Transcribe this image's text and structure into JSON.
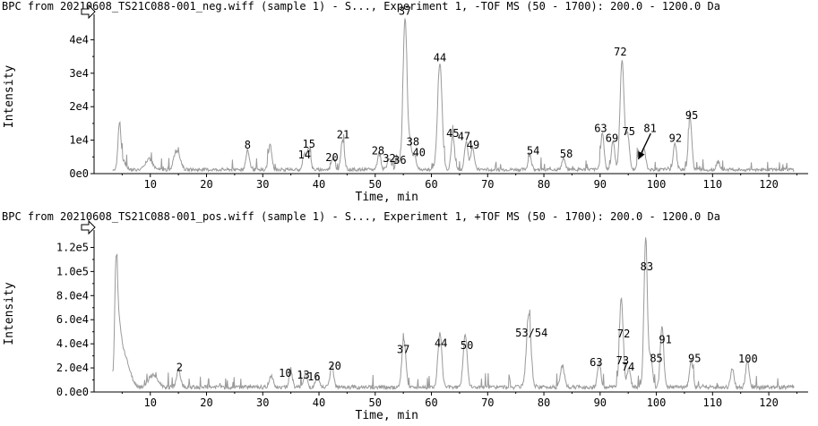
{
  "chart_data": [
    {
      "type": "line",
      "title": "BPC from 20210608_TS21C088-001_neg.wiff (sample 1) - S..., Experiment 1, -TOF MS (50 - 1700): 200.0 - 1200.0 Da",
      "xlabel": "Time, min",
      "ylabel": "Intensity",
      "xlim": [
        0,
        127
      ],
      "ylim": [
        0,
        46000
      ],
      "x_ticks": [
        10,
        20,
        30,
        40,
        50,
        60,
        70,
        80,
        90,
        100,
        110,
        120
      ],
      "y_ticks": [
        0,
        10000,
        20000,
        30000,
        40000
      ],
      "y_tick_labels": [
        "0e0",
        "1e4",
        "2e4",
        "3e4",
        "4e4"
      ],
      "baseline": 1200,
      "peaks": [
        {
          "x": 4.5,
          "y": 12500,
          "w": 0.25
        },
        {
          "x": 5.0,
          "y": 3000,
          "w": 0.5
        },
        {
          "x": 9.8,
          "y": 3200,
          "w": 0.6
        },
        {
          "x": 14.5,
          "y": 4500,
          "w": 0.4
        },
        {
          "x": 15.2,
          "y": 3000,
          "w": 0.4
        },
        {
          "x": 27.3,
          "y": 5500,
          "w": 0.3,
          "label": "8"
        },
        {
          "x": 31.3,
          "y": 7500,
          "w": 0.3
        },
        {
          "x": 37.4,
          "y": 4500,
          "w": 0.3,
          "label": "14"
        },
        {
          "x": 38.2,
          "y": 6500,
          "w": 0.3,
          "label": "15"
        },
        {
          "x": 42.5,
          "y": 3500,
          "w": 0.3,
          "label": "20"
        },
        {
          "x": 44.2,
          "y": 9000,
          "w": 0.3,
          "label": "21"
        },
        {
          "x": 50.7,
          "y": 4800,
          "w": 0.3,
          "label": "28"
        },
        {
          "x": 52.5,
          "y": 3500,
          "w": 0.3,
          "label": "32"
        },
        {
          "x": 54.0,
          "y": 2800,
          "w": 0.3,
          "label": "36"
        },
        {
          "x": 55.3,
          "y": 45500,
          "w": 0.35,
          "label": "37"
        },
        {
          "x": 56.2,
          "y": 7500,
          "w": 0.3,
          "label": "38"
        },
        {
          "x": 57.0,
          "y": 4500,
          "w": 0.3,
          "label": "40"
        },
        {
          "x": 61.5,
          "y": 32000,
          "w": 0.4,
          "label": "44"
        },
        {
          "x": 63.8,
          "y": 10000,
          "w": 0.3,
          "label": "45"
        },
        {
          "x": 66.2,
          "y": 8500,
          "w": 0.3,
          "label": "47"
        },
        {
          "x": 67.3,
          "y": 7000,
          "w": 0.3,
          "label": "49"
        },
        {
          "x": 77.5,
          "y": 4200,
          "w": 0.3,
          "label": "54"
        },
        {
          "x": 83.5,
          "y": 3200,
          "w": 0.3,
          "label": "58"
        },
        {
          "x": 90.4,
          "y": 11000,
          "w": 0.3,
          "label": "63"
        },
        {
          "x": 92.3,
          "y": 8500,
          "w": 0.3,
          "label": "69"
        },
        {
          "x": 93.9,
          "y": 33000,
          "w": 0.35,
          "label": "72"
        },
        {
          "x": 94.9,
          "y": 10500,
          "w": 0.3,
          "label": "75"
        },
        {
          "x": 96.9,
          "y": 5000,
          "w": 0.3,
          "label": "81"
        },
        {
          "x": 97.8,
          "y": 6000,
          "w": 0.3
        },
        {
          "x": 103.3,
          "y": 8000,
          "w": 0.3,
          "label": "92"
        },
        {
          "x": 106.0,
          "y": 15500,
          "w": 0.3,
          "label": "95"
        },
        {
          "x": 111.0,
          "y": 2500,
          "w": 0.3
        }
      ],
      "annotations": [
        {
          "text": "8",
          "x": 27.3,
          "y": 7500
        },
        {
          "text": "14",
          "x": 37.4,
          "y": 4500
        },
        {
          "text": "15",
          "x": 38.2,
          "y": 7700
        },
        {
          "text": "20",
          "x": 42.3,
          "y": 3800
        },
        {
          "text": "21",
          "x": 44.3,
          "y": 10500
        },
        {
          "text": "28",
          "x": 50.5,
          "y": 5800
        },
        {
          "text": "32",
          "x": 52.5,
          "y": 3500
        },
        {
          "text": "36",
          "x": 54.4,
          "y": 3000
        },
        {
          "text": "37",
          "x": 55.3,
          "y": 47500
        },
        {
          "text": "38",
          "x": 56.7,
          "y": 8400
        },
        {
          "text": "40",
          "x": 57.8,
          "y": 5200
        },
        {
          "text": "44",
          "x": 61.5,
          "y": 33500
        },
        {
          "text": "45",
          "x": 63.8,
          "y": 11000
        },
        {
          "text": "47",
          "x": 65.8,
          "y": 10000
        },
        {
          "text": "49",
          "x": 67.4,
          "y": 7500
        },
        {
          "text": "54",
          "x": 78.1,
          "y": 5800
        },
        {
          "text": "58",
          "x": 84.0,
          "y": 4800
        },
        {
          "text": "63",
          "x": 90.1,
          "y": 12500
        },
        {
          "text": "69",
          "x": 92.1,
          "y": 9500
        },
        {
          "text": "72",
          "x": 93.6,
          "y": 35300
        },
        {
          "text": "75",
          "x": 95.1,
          "y": 11500
        },
        {
          "text": "81",
          "x": 98.9,
          "y": 12500
        },
        {
          "text": "92",
          "x": 103.4,
          "y": 9500
        },
        {
          "text": "95",
          "x": 106.3,
          "y": 16300
        }
      ],
      "arrow": {
        "from": [
          99.0,
          12000
        ],
        "to": [
          96.8,
          4300
        ]
      }
    },
    {
      "type": "line",
      "title": "BPC from 20210608_TS21C088-001_pos.wiff (sample 1) - S..., Experiment 1, +TOF MS (50 - 1700): 200.0 - 1200.0 Da",
      "xlabel": "Time, min",
      "ylabel": "Intensity",
      "xlim": [
        0,
        127
      ],
      "ylim": [
        0,
        130000
      ],
      "x_ticks": [
        10,
        20,
        30,
        40,
        50,
        60,
        70,
        80,
        90,
        100,
        110,
        120
      ],
      "y_ticks": [
        0,
        20000,
        40000,
        60000,
        80000,
        100000,
        120000
      ],
      "y_tick_labels": [
        "0.0e0",
        "2.0e4",
        "4.0e4",
        "6.0e4",
        "8.0e4",
        "1.0e5",
        "1.2e5"
      ],
      "baseline": 4000,
      "peaks": [
        {
          "x": 3.9,
          "y": 88000,
          "w": 0.25
        },
        {
          "x": 4.4,
          "y": 42000,
          "w": 0.4
        },
        {
          "x": 5.2,
          "y": 20000,
          "w": 0.6
        },
        {
          "x": 6.0,
          "y": 12000,
          "w": 0.8
        },
        {
          "x": 10.5,
          "y": 10000,
          "w": 0.8
        },
        {
          "x": 15.0,
          "y": 15000,
          "w": 0.35,
          "label": "2"
        },
        {
          "x": 31.5,
          "y": 10000,
          "w": 0.35
        },
        {
          "x": 35.0,
          "y": 12000,
          "w": 0.3,
          "label": "10"
        },
        {
          "x": 37.6,
          "y": 11000,
          "w": 0.3,
          "label": "13"
        },
        {
          "x": 39.7,
          "y": 9500,
          "w": 0.3,
          "label": "16"
        },
        {
          "x": 42.3,
          "y": 18000,
          "w": 0.3,
          "label": "20"
        },
        {
          "x": 55.1,
          "y": 40000,
          "w": 0.35,
          "label": "37"
        },
        {
          "x": 61.5,
          "y": 45000,
          "w": 0.35,
          "label": "44"
        },
        {
          "x": 66.0,
          "y": 45000,
          "w": 0.35,
          "label": "50"
        },
        {
          "x": 77.3,
          "y": 61000,
          "w": 0.4,
          "label": "53/54"
        },
        {
          "x": 83.3,
          "y": 18000,
          "w": 0.35
        },
        {
          "x": 89.8,
          "y": 20000,
          "w": 0.3,
          "label": "63"
        },
        {
          "x": 93.7,
          "y": 60000,
          "w": 0.3,
          "label": "72"
        },
        {
          "x": 94.0,
          "y": 22000,
          "w": 0.3,
          "label": "73"
        },
        {
          "x": 95.1,
          "y": 16000,
          "w": 0.3,
          "label": "74"
        },
        {
          "x": 98.1,
          "y": 125000,
          "w": 0.3,
          "label": "83"
        },
        {
          "x": 99.0,
          "y": 26000,
          "w": 0.3,
          "label": "85"
        },
        {
          "x": 101.0,
          "y": 52000,
          "w": 0.3,
          "label": "91"
        },
        {
          "x": 106.2,
          "y": 23000,
          "w": 0.3,
          "label": "95"
        },
        {
          "x": 113.5,
          "y": 15000,
          "w": 0.3
        },
        {
          "x": 116.2,
          "y": 22000,
          "w": 0.3,
          "label": "100"
        }
      ],
      "annotations": [
        {
          "text": "2",
          "x": 15.2,
          "y": 17500
        },
        {
          "text": "10",
          "x": 34.0,
          "y": 12500
        },
        {
          "text": "13",
          "x": 37.2,
          "y": 11000
        },
        {
          "text": "16",
          "x": 39.1,
          "y": 9500
        },
        {
          "text": "20",
          "x": 42.8,
          "y": 18500
        },
        {
          "text": "37",
          "x": 55.0,
          "y": 32500
        },
        {
          "text": "44",
          "x": 61.7,
          "y": 37500
        },
        {
          "text": "50",
          "x": 66.3,
          "y": 35500
        },
        {
          "text": "53/54",
          "x": 77.8,
          "y": 46000
        },
        {
          "text": "63",
          "x": 89.3,
          "y": 21500
        },
        {
          "text": "72",
          "x": 94.2,
          "y": 45500
        },
        {
          "text": "73",
          "x": 94.0,
          "y": 23000
        },
        {
          "text": "74",
          "x": 95.0,
          "y": 18000
        },
        {
          "text": "83",
          "x": 98.3,
          "y": 101000
        },
        {
          "text": "85",
          "x": 100.0,
          "y": 25000
        },
        {
          "text": "91",
          "x": 101.6,
          "y": 40500
        },
        {
          "text": "95",
          "x": 106.8,
          "y": 25000
        },
        {
          "text": "100",
          "x": 116.3,
          "y": 24500
        }
      ]
    }
  ]
}
